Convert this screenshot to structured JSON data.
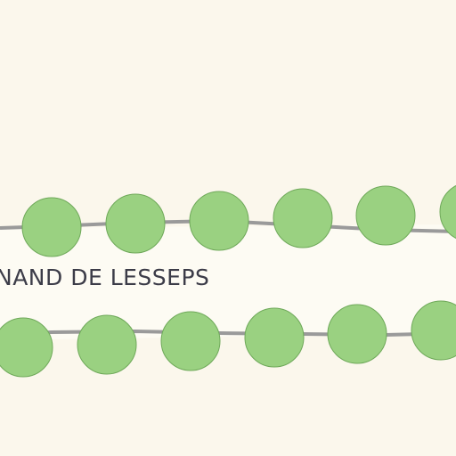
{
  "map": {
    "background_color": "#fbf7ec",
    "street": {
      "label": "NAND DE LESSEPS",
      "fill_color": "#fdfbf3",
      "label_color": "#3c3c48"
    },
    "tree_rows": [
      {
        "name": "north-tree-row",
        "tree_count": 6,
        "line_color": "#9a9a9a",
        "tree_fill": "#9ad181",
        "tree_stroke": "#6fa95a"
      },
      {
        "name": "south-tree-row",
        "tree_count": 6,
        "line_color": "#9a9a9a",
        "tree_fill": "#9ad181",
        "tree_stroke": "#6fa95a"
      }
    ]
  }
}
